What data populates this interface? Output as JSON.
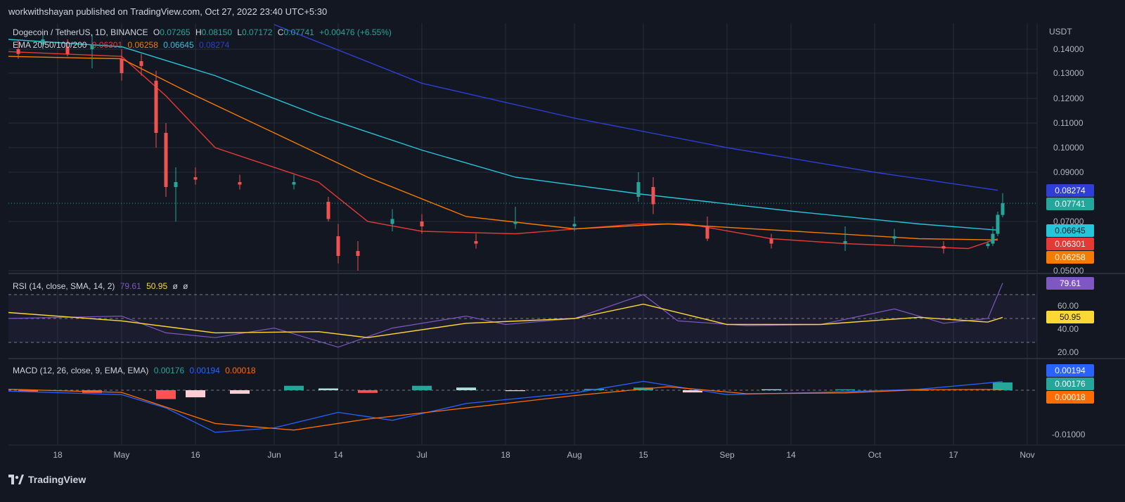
{
  "header": {
    "publisher": "workwithshayan published on TradingView.com, Oct 27, 2022 23:40 UTC+5:30"
  },
  "footer": {
    "brand": "TradingView"
  },
  "colors": {
    "bg": "#131722",
    "grid": "#2a2e39",
    "text": "#b2b5be",
    "up": "#26a69a",
    "down": "#ef5350",
    "ema20": "#e53935",
    "ema50": "#f57c00",
    "ema100": "#26c6da",
    "ema200": "#2f3ed6",
    "rsi": "#7e57c2",
    "rsi_ma": "#fdd835",
    "macd": "#2962ff",
    "signal": "#ff6d00"
  },
  "price_legend": {
    "symbol": "Dogecoin / TetherUS, 1D, BINANCE",
    "o_label": "O",
    "o": "0.07265",
    "h_label": "H",
    "h": "0.08150",
    "l_label": "L",
    "l": "0.07172",
    "c_label": "C",
    "c": "0.07741",
    "change": "+0.00476 (+6.55%)",
    "ema_label": "EMA 20/50/100/200",
    "ema20": "0.06301",
    "ema50": "0.06258",
    "ema100": "0.06645",
    "ema200": "0.08274"
  },
  "rsi_legend": {
    "label": "RSI (14, close, SMA, 14, 2)",
    "rsi": "79.61",
    "ma": "50.95",
    "extra1": "ø",
    "extra2": "ø"
  },
  "macd_legend": {
    "label": "MACD (12, 26, close, 9, EMA, EMA)",
    "hist": "0.00176",
    "macd": "0.00194",
    "signal": "0.00018"
  },
  "axis": {
    "price_unit": "USDT",
    "price_ticks": [
      "0.14000",
      "0.13000",
      "0.12000",
      "0.11000",
      "0.10000",
      "0.09000",
      "0.07000",
      "0.05000"
    ],
    "rsi_ticks": [
      "60.00",
      "40.00",
      "20.00"
    ],
    "macd_ticks": [
      "-0.01000"
    ],
    "time_ticks": [
      "18",
      "May",
      "16",
      "Jun",
      "14",
      "Jul",
      "18",
      "Aug",
      "15",
      "Sep",
      "14",
      "Oct",
      "17",
      "Nov"
    ]
  },
  "price_badges": [
    {
      "value": "0.08274",
      "color": "#2f3ed6",
      "text": "#ffffff"
    },
    {
      "value": "0.07741",
      "color": "#26a69a",
      "text": "#ffffff"
    },
    {
      "value": "0.06645",
      "color": "#26c6da",
      "text": "#131722"
    },
    {
      "value": "0.06301",
      "color": "#e53935",
      "text": "#ffffff"
    },
    {
      "value": "0.06258",
      "color": "#f57c00",
      "text": "#ffffff"
    }
  ],
  "rsi_badges": [
    {
      "value": "79.61",
      "color": "#7e57c2",
      "text": "#ffffff"
    },
    {
      "value": "50.95",
      "color": "#fdd835",
      "text": "#131722"
    }
  ],
  "macd_badges": [
    {
      "value": "0.00194",
      "color": "#2962ff",
      "text": "#ffffff"
    },
    {
      "value": "0.00176",
      "color": "#26a69a",
      "text": "#ffffff"
    },
    {
      "value": "0.00018",
      "color": "#ff6d00",
      "text": "#ffffff"
    }
  ],
  "chart_data": {
    "type": "candlestick",
    "symbol": "DOGEUSDT",
    "timeframe": "1D",
    "x_range": [
      "2022-04-08",
      "2022-11-03"
    ],
    "y_range": [
      0.046,
      0.147
    ],
    "last_close": 0.07741,
    "ema_series": [
      {
        "name": "EMA 20",
        "last": 0.06301,
        "points": [
          [
            "2022-04-08",
            0.139
          ],
          [
            "2022-05-01",
            0.137
          ],
          [
            "2022-05-10",
            0.121
          ],
          [
            "2022-05-20",
            0.1
          ],
          [
            "2022-06-10",
            0.086
          ],
          [
            "2022-06-20",
            0.07
          ],
          [
            "2022-07-01",
            0.066
          ],
          [
            "2022-07-20",
            0.065
          ],
          [
            "2022-08-14",
            0.069
          ],
          [
            "2022-08-24",
            0.069
          ],
          [
            "2022-09-10",
            0.063
          ],
          [
            "2022-09-25",
            0.061
          ],
          [
            "2022-10-20",
            0.059
          ],
          [
            "2022-10-26",
            0.063
          ]
        ]
      },
      {
        "name": "EMA 50",
        "last": 0.06258,
        "points": [
          [
            "2022-04-08",
            0.137
          ],
          [
            "2022-05-01",
            0.136
          ],
          [
            "2022-05-15",
            0.122
          ],
          [
            "2022-06-01",
            0.106
          ],
          [
            "2022-06-20",
            0.088
          ],
          [
            "2022-07-10",
            0.072
          ],
          [
            "2022-08-01",
            0.067
          ],
          [
            "2022-08-20",
            0.069
          ],
          [
            "2022-09-15",
            0.066
          ],
          [
            "2022-10-10",
            0.063
          ],
          [
            "2022-10-26",
            0.0625
          ]
        ]
      },
      {
        "name": "EMA 100",
        "last": 0.06645,
        "points": [
          [
            "2022-04-08",
            0.144
          ],
          [
            "2022-05-01",
            0.141
          ],
          [
            "2022-05-20",
            0.129
          ],
          [
            "2022-06-10",
            0.113
          ],
          [
            "2022-07-01",
            0.099
          ],
          [
            "2022-07-20",
            0.088
          ],
          [
            "2022-08-15",
            0.081
          ],
          [
            "2022-09-15",
            0.074
          ],
          [
            "2022-10-10",
            0.069
          ],
          [
            "2022-10-26",
            0.0665
          ]
        ]
      },
      {
        "name": "EMA 200",
        "last": 0.08274,
        "points": [
          [
            "2022-06-01",
            0.15
          ],
          [
            "2022-07-01",
            0.126
          ],
          [
            "2022-08-01",
            0.112
          ],
          [
            "2022-09-01",
            0.1
          ],
          [
            "2022-10-01",
            0.09
          ],
          [
            "2022-10-26",
            0.0827
          ]
        ]
      }
    ],
    "candles_approx": [
      [
        "2022-04-10",
        0.14,
        0.144,
        0.136,
        0.138
      ],
      [
        "2022-04-15",
        0.142,
        0.146,
        0.14,
        0.144
      ],
      [
        "2022-04-20",
        0.141,
        0.144,
        0.137,
        0.138
      ],
      [
        "2022-04-25",
        0.14,
        0.146,
        0.132,
        0.142
      ],
      [
        "2022-05-01",
        0.136,
        0.14,
        0.127,
        0.13
      ],
      [
        "2022-05-05",
        0.135,
        0.138,
        0.129,
        0.133
      ],
      [
        "2022-05-08",
        0.127,
        0.131,
        0.1,
        0.106
      ],
      [
        "2022-05-10",
        0.106,
        0.11,
        0.08,
        0.084
      ],
      [
        "2022-05-12",
        0.084,
        0.092,
        0.07,
        0.086
      ],
      [
        "2022-05-16",
        0.088,
        0.092,
        0.085,
        0.087
      ],
      [
        "2022-05-25",
        0.086,
        0.089,
        0.083,
        0.085
      ],
      [
        "2022-06-05",
        0.085,
        0.089,
        0.083,
        0.086
      ],
      [
        "2022-06-12",
        0.078,
        0.08,
        0.07,
        0.071
      ],
      [
        "2022-06-14",
        0.064,
        0.069,
        0.053,
        0.056
      ],
      [
        "2022-06-18",
        0.058,
        0.062,
        0.05,
        0.056
      ],
      [
        "2022-06-25",
        0.069,
        0.075,
        0.066,
        0.071
      ],
      [
        "2022-07-01",
        0.07,
        0.073,
        0.065,
        0.068
      ],
      [
        "2022-07-12",
        0.062,
        0.065,
        0.059,
        0.061
      ],
      [
        "2022-07-20",
        0.069,
        0.076,
        0.067,
        0.07
      ],
      [
        "2022-08-01",
        0.068,
        0.072,
        0.066,
        0.069
      ],
      [
        "2022-08-14",
        0.08,
        0.09,
        0.078,
        0.086
      ],
      [
        "2022-08-17",
        0.084,
        0.088,
        0.073,
        0.077
      ],
      [
        "2022-08-28",
        0.068,
        0.072,
        0.062,
        0.063
      ],
      [
        "2022-09-10",
        0.063,
        0.065,
        0.059,
        0.061
      ],
      [
        "2022-09-25",
        0.061,
        0.068,
        0.058,
        0.062
      ],
      [
        "2022-10-05",
        0.063,
        0.067,
        0.061,
        0.064
      ],
      [
        "2022-10-15",
        0.06,
        0.062,
        0.057,
        0.059
      ],
      [
        "2022-10-24",
        0.06,
        0.062,
        0.059,
        0.061
      ],
      [
        "2022-10-25",
        0.061,
        0.068,
        0.06,
        0.065
      ],
      [
        "2022-10-26",
        0.065,
        0.074,
        0.064,
        0.0727
      ],
      [
        "2022-10-27",
        0.07265,
        0.0815,
        0.07172,
        0.07741
      ]
    ],
    "rsi": {
      "name": "RSI (14, close, SMA, 14, 2)",
      "last": 79.61,
      "ma_last": 50.95,
      "bands": [
        70,
        30
      ],
      "ylim": [
        15,
        85
      ]
    },
    "macd": {
      "name": "MACD (12, 26, close, 9, EMA, EMA)",
      "histogram": 0.00176,
      "macd": 0.00194,
      "signal": 0.00018
    }
  }
}
